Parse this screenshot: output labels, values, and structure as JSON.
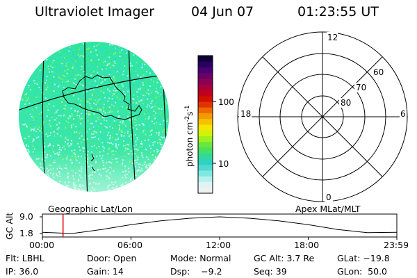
{
  "header": {
    "instrument": "Ultraviolet Imager",
    "date": "04 Jun 07",
    "time": "01:23:55 UT"
  },
  "image_panel": {
    "caption": "Geographic Lat/Lon",
    "base_color": "#2ee6a6",
    "accent_colors": [
      "#b5f5e8",
      "#2bd3e0",
      "#8cf25a",
      "#3ae27a"
    ]
  },
  "color_scale": {
    "unit": "photon cm",
    "unit_exp1": "-2",
    "unit_mid": "s",
    "unit_exp2": "-1",
    "tick_100": "100",
    "tick_10": "10",
    "colors": [
      "#f0f0f0",
      "#dff3f3",
      "#b5f1ee",
      "#7fe8e0",
      "#4fd9d3",
      "#2ed3c0",
      "#32d99a",
      "#45e066",
      "#6be63c",
      "#9ef01e",
      "#d2f20c",
      "#f3e600",
      "#f6c200",
      "#f39a00",
      "#ee6a00",
      "#e03400",
      "#d11000",
      "#c0001c",
      "#a8003a",
      "#8a0054",
      "#6a0068",
      "#4a0070",
      "#2a0060",
      "#10003a"
    ]
  },
  "polar_plot": {
    "caption": "Apex MLat/MLT",
    "mlt_top": "12",
    "mlt_left": "18",
    "mlt_right": "6",
    "mlt_bottom": "0",
    "lat_60": "60",
    "lat_70": "70",
    "lat_80": "80"
  },
  "altitude_plot": {
    "y_label": "GC Alt",
    "y_top": "9.0",
    "y_bottom": "1.8",
    "x_ticks": [
      "00:00",
      "06:00",
      "12:00",
      "18:00",
      "23:59"
    ],
    "marker_color": "#dd0000",
    "marker_time_hours": 1.399,
    "altitude_curve_re": [
      2.3,
      1.8,
      3.5,
      5.6,
      7.3,
      8.4,
      9.0,
      8.4,
      7.3,
      5.6,
      3.5,
      2.2,
      2.3
    ]
  },
  "status": {
    "flt": "Flt: LBHL",
    "door": "Door: Open",
    "mode": "Mode: Normal",
    "gc_alt": "GC Alt: 3.7 Re",
    "glat": "GLat: −19.8",
    "ip": "IP: 36.0",
    "gain": "Gain: 14",
    "dsp": "Dsp:    −9.2",
    "seq": "Seq: 39",
    "glon": "GLon:  50.0"
  }
}
